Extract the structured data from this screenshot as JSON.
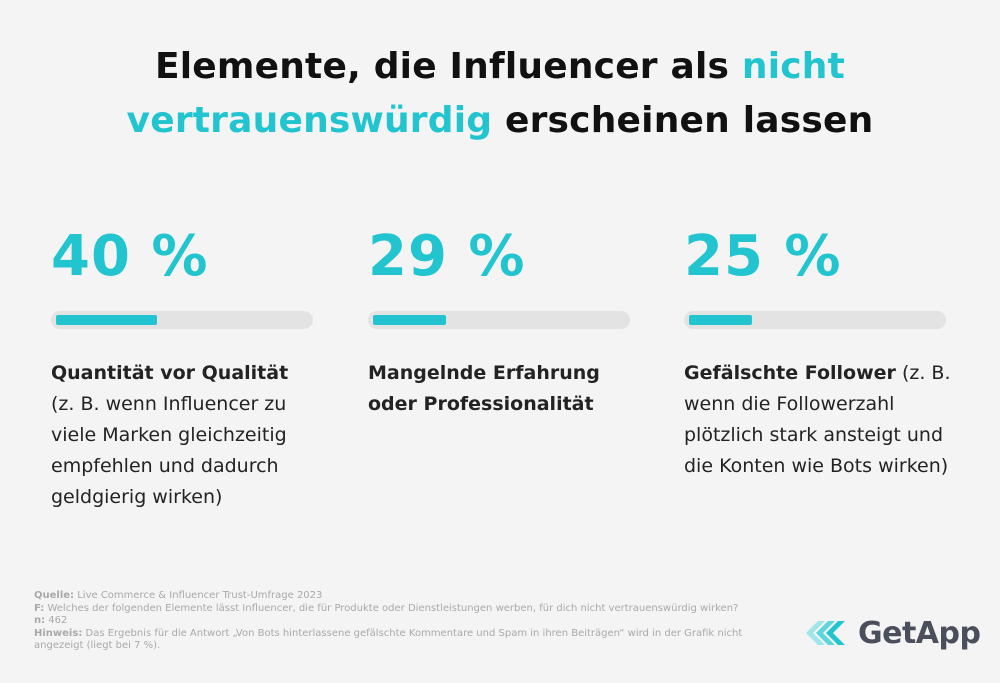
{
  "title": {
    "part1": "Elemente, die Influencer als ",
    "highlight": "nicht vertrauenswürdig",
    "part2": " erscheinen lassen"
  },
  "chart_data": {
    "type": "bar",
    "categories": [
      "Quantität vor Qualität",
      "Mangelnde Erfahrung oder Professionalität",
      "Gefälschte Follower"
    ],
    "values": [
      40,
      29,
      25
    ],
    "value_labels": [
      "40 %",
      "29 %",
      "25 %"
    ],
    "ylim": [
      0,
      100
    ],
    "details": [
      "(z. B. wenn Influencer zu viele Marken gleichzeitig empfehlen und dadurch geldgierig wirken)",
      "",
      "(z. B. wenn die Followerzahl plötzlich stark ansteigt und die Konten wie Bots wirken)"
    ]
  },
  "colors": {
    "accent": "#22c5cf",
    "track": "#e3e3e3"
  },
  "footer": {
    "source_label": "Quelle:",
    "source_text": " Live Commerce & Influencer Trust-Umfrage 2023",
    "question_label": "F:",
    "question_text": " Welches der folgenden Elemente lässt Influencer, die für Produkte oder Dienstleistungen werben, für dich nicht vertrauenswürdig wirken?",
    "n_label": "n:",
    "n_text": " 462",
    "note_label": "Hinweis:",
    "note_text": " Das Ergebnis für die Antwort „Von Bots hinterlassene gefälschte Kommentare und Spam in ihren Beiträgen“ wird in der Grafik nicht angezeigt (liegt bei 7 %)."
  },
  "logo": {
    "text": "GetApp",
    "icon": "getapp-chevrons-icon"
  }
}
